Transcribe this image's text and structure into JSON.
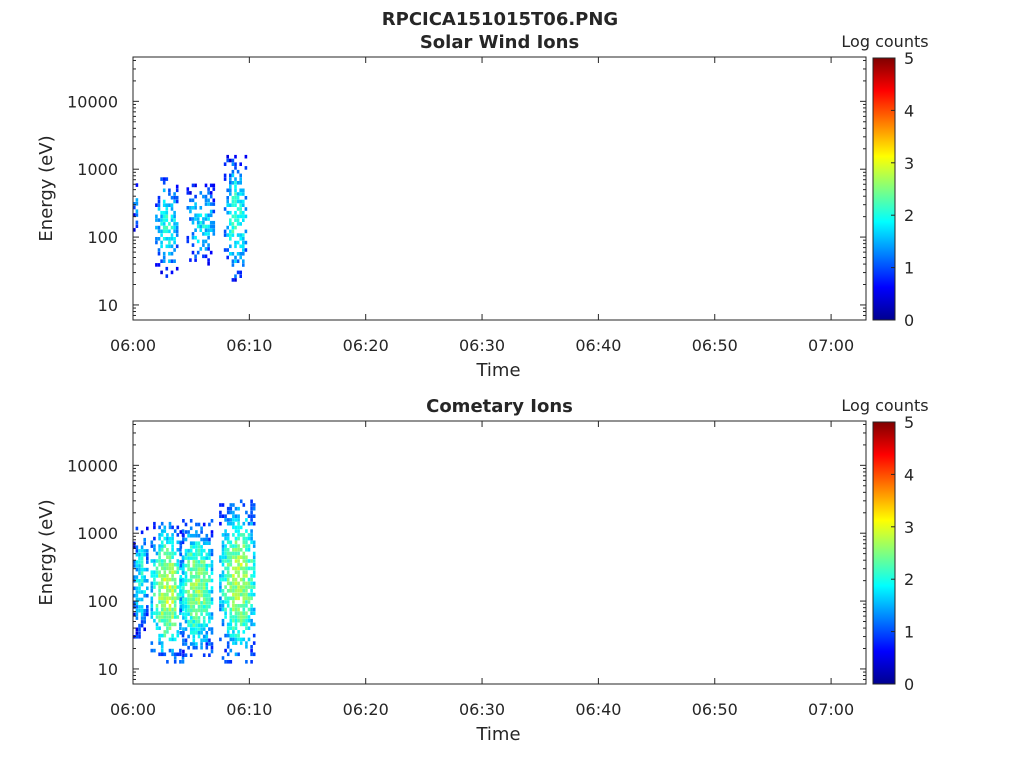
{
  "figure_title": "RPCICA151015T06.PNG",
  "chart_data": [
    {
      "type": "heatmap",
      "title": "Solar Wind Ions",
      "xlabel": "Time",
      "ylabel": "Energy (eV)",
      "x_ticks": [
        "06:00",
        "06:10",
        "06:20",
        "06:30",
        "06:40",
        "06:50",
        "07:00"
      ],
      "xlim": [
        "06:00",
        "07:03"
      ],
      "y_scale": "log",
      "y_ticks": [
        "10",
        "100",
        "1000",
        "10000"
      ],
      "ylim": [
        6,
        45000
      ],
      "colorbar": {
        "label": "Log counts",
        "ticks": [
          "0",
          "1",
          "2",
          "3",
          "4",
          "5"
        ],
        "range": [
          0,
          5
        ],
        "colormap": "jet"
      },
      "bursts": [
        {
          "start_min": 0.0,
          "end_min": 0.6,
          "emin": 120,
          "emax": 550,
          "peak_log": 1.6,
          "fill": 0.55
        },
        {
          "start_min": 1.9,
          "end_min": 3.8,
          "emin": 25,
          "emax": 700,
          "peak_log": 2.0,
          "fill": 0.7
        },
        {
          "start_min": 4.6,
          "end_min": 7.0,
          "emin": 38,
          "emax": 600,
          "peak_log": 1.8,
          "fill": 0.6
        },
        {
          "start_min": 7.8,
          "end_min": 9.7,
          "emin": 22,
          "emax": 1500,
          "peak_log": 2.1,
          "fill": 0.65
        }
      ]
    },
    {
      "type": "heatmap",
      "title": "Cometary Ions",
      "xlabel": "Time",
      "ylabel": "Energy (eV)",
      "x_ticks": [
        "06:00",
        "06:10",
        "06:20",
        "06:30",
        "06:40",
        "06:50",
        "07:00"
      ],
      "xlim": [
        "06:00",
        "07:03"
      ],
      "y_scale": "log",
      "y_ticks": [
        "10",
        "100",
        "1000",
        "10000"
      ],
      "ylim": [
        6,
        45000
      ],
      "colorbar": {
        "label": "Log counts",
        "ticks": [
          "0",
          "1",
          "2",
          "3",
          "4",
          "5"
        ],
        "range": [
          0,
          5
        ],
        "colormap": "jet"
      },
      "bursts": [
        {
          "start_min": 0.0,
          "end_min": 1.2,
          "emin": 28,
          "emax": 1200,
          "peak_log": 2.0,
          "fill": 0.8
        },
        {
          "start_min": 1.5,
          "end_min": 4.2,
          "emin": 12,
          "emax": 1400,
          "peak_log": 2.8,
          "fill": 0.88
        },
        {
          "start_min": 4.0,
          "end_min": 6.8,
          "emin": 15,
          "emax": 1500,
          "peak_log": 2.6,
          "fill": 0.88
        },
        {
          "start_min": 7.4,
          "end_min": 10.5,
          "emin": 12,
          "emax": 3000,
          "peak_log": 2.7,
          "fill": 0.85
        }
      ]
    }
  ]
}
